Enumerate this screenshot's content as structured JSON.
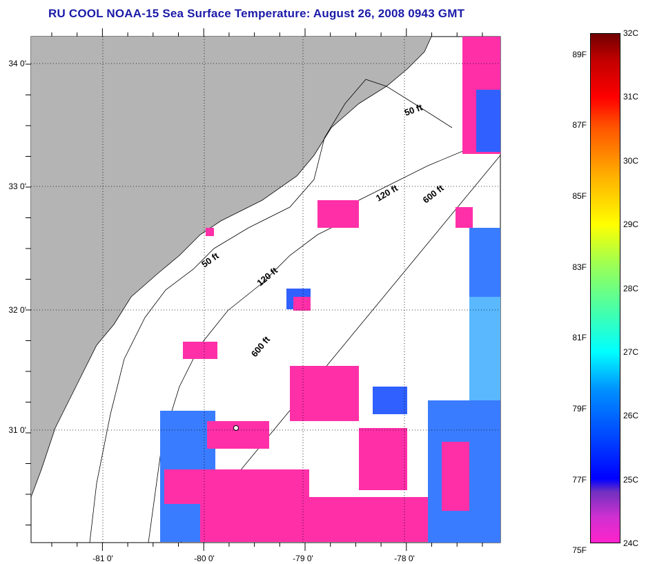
{
  "title": "RU COOL  NOAA-15  Sea Surface Temperature:  August 26, 2008 0943 GMT",
  "lat_labels": [
    {
      "label": "34 0'",
      "value": 34
    },
    {
      "label": "33 0'",
      "value": 33
    },
    {
      "label": "32 0'",
      "value": 32
    },
    {
      "label": "31 0'",
      "value": 31
    }
  ],
  "lon_labels": [
    {
      "label": "-81 0'",
      "value": -81
    },
    {
      "label": "-80 0'",
      "value": -80
    },
    {
      "label": "-79 0'",
      "value": -79
    },
    {
      "label": "-78 0'",
      "value": -78
    }
  ],
  "contours": {
    "c50a": "50 ft",
    "c50b": "50 ft",
    "c120a": "120 ft",
    "c120b": "120 ft",
    "c600a": "600 ft",
    "c600b": "600 ft"
  },
  "colorbar": {
    "celsius": [
      {
        "label": "32C",
        "value": 32
      },
      {
        "label": "31C",
        "value": 31
      },
      {
        "label": "30C",
        "value": 30
      },
      {
        "label": "29C",
        "value": 29
      },
      {
        "label": "28C",
        "value": 28
      },
      {
        "label": "27C",
        "value": 27
      },
      {
        "label": "26C",
        "value": 26
      },
      {
        "label": "25C",
        "value": 25
      },
      {
        "label": "24C",
        "value": 24
      }
    ],
    "fahrenheit": [
      {
        "label": "89F",
        "value": 89
      },
      {
        "label": "87F",
        "value": 87
      },
      {
        "label": "85F",
        "value": 85
      },
      {
        "label": "83F",
        "value": 83
      },
      {
        "label": "81F",
        "value": 81
      },
      {
        "label": "79F",
        "value": 79
      },
      {
        "label": "77F",
        "value": 77
      },
      {
        "label": "75F",
        "value": 75
      }
    ]
  },
  "colors": {
    "land": "#b4b4b4",
    "title": "#1a1aa8",
    "cold": "#ff2fa8",
    "cool": "#3060ff"
  }
}
